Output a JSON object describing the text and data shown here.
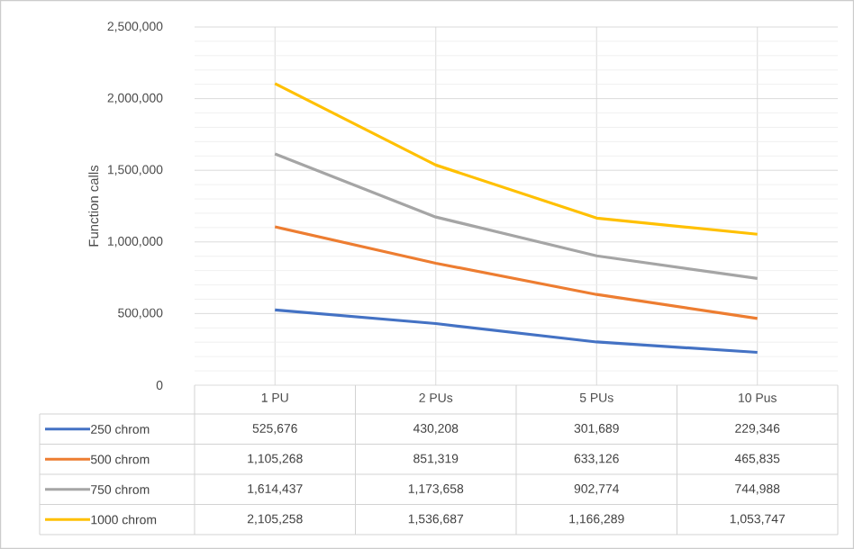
{
  "chart_data": {
    "type": "line",
    "ylabel": "Function calls",
    "categories": [
      "1 PU",
      "2 PUs",
      "5 PUs",
      "10 Pus"
    ],
    "series": [
      {
        "name": "250 chrom",
        "color": "#4472c4",
        "values": [
          525676,
          430208,
          301689,
          229346
        ],
        "value_labels": [
          "525,676",
          "430,208",
          "301,689",
          "229,346"
        ]
      },
      {
        "name": "500 chrom",
        "color": "#ed7d31",
        "values": [
          1105268,
          851319,
          633126,
          465835
        ],
        "value_labels": [
          "1,105,268",
          "851,319",
          "633,126",
          "465,835"
        ]
      },
      {
        "name": "750 chrom",
        "color": "#a5a5a5",
        "values": [
          1614437,
          1173658,
          902774,
          744988
        ],
        "value_labels": [
          "1,614,437",
          "1,173,658",
          "902,774",
          "744,988"
        ]
      },
      {
        "name": "1000 chrom",
        "color": "#ffc000",
        "values": [
          2105258,
          1536687,
          1166289,
          1053747
        ],
        "value_labels": [
          "2,105,258",
          "1,536,687",
          "1,166,289",
          "1,053,747"
        ]
      }
    ],
    "ylim": [
      0,
      2500000
    ],
    "yticks": [
      {
        "value": 0,
        "label": "0"
      },
      {
        "value": 500000,
        "label": "500,000"
      },
      {
        "value": 1000000,
        "label": "1,000,000"
      },
      {
        "value": 1500000,
        "label": "1,500,000"
      },
      {
        "value": 2000000,
        "label": "2,000,000"
      },
      {
        "value": 2500000,
        "label": "2,500,000"
      }
    ],
    "grid": true,
    "legend": "bottom"
  }
}
